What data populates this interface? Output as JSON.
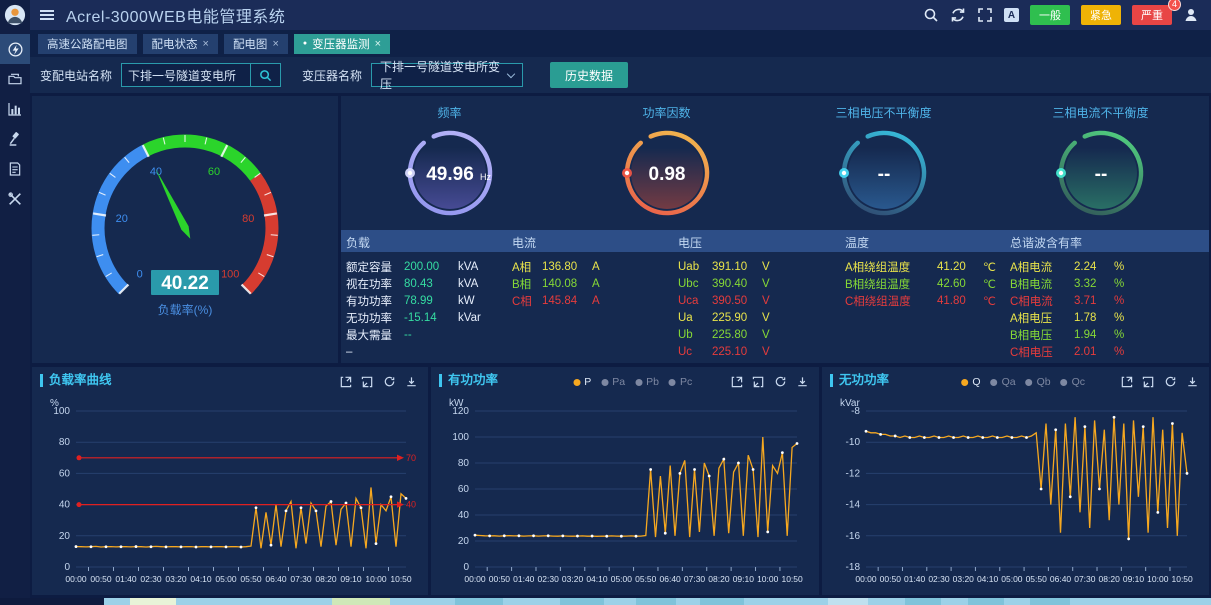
{
  "app": {
    "title": "Acrel-3000WEB电能管理系统"
  },
  "topbar": {
    "badges": [
      {
        "label": "一般",
        "color": "#2fbf4f",
        "count": null
      },
      {
        "label": "紧急",
        "color": "#efb306",
        "count": null
      },
      {
        "label": "严重",
        "color": "#e84545",
        "count": "4"
      }
    ]
  },
  "tabs": [
    {
      "label": "高速公路配电图",
      "closable": false,
      "active": false
    },
    {
      "label": "配电状态",
      "closable": true,
      "active": false
    },
    {
      "label": "配电图",
      "closable": true,
      "active": false
    },
    {
      "label": "变压器监测",
      "closable": true,
      "active": true
    }
  ],
  "filters": {
    "station_label": "变配电站名称",
    "station_value": "下排一号隧道变电所",
    "transformer_label": "变压器名称",
    "transformer_value": "下排一号隧道变电所变压",
    "history_button": "历史数据"
  },
  "load_gauge": {
    "value": "40.22",
    "caption": "负载率(%)",
    "min": 0,
    "max": 100,
    "tick_labels": [
      0,
      20,
      40,
      60,
      80,
      100
    ],
    "zones": [
      {
        "from": 0,
        "to": 40,
        "color": "#3e8ef0"
      },
      {
        "from": 40,
        "to": 70,
        "color": "#2bd42b"
      },
      {
        "from": 70,
        "to": 100,
        "color": "#d63c30"
      }
    ],
    "needle_value": 40.22,
    "needle_color": "#2bd42b",
    "value_box_color": "#2a9aab"
  },
  "ring_gauges": [
    {
      "title": "频率",
      "value": "49.96",
      "unit": "Hz",
      "ring_from": "#8f93ef",
      "ring_to": "#b9b6f8",
      "fill": "#6f66cc",
      "dot": "#d8daff"
    },
    {
      "title": "功率因数",
      "value": "0.98",
      "unit": "",
      "ring_from": "#e8584a",
      "ring_to": "#f2bf4e",
      "fill": "#c04a3a",
      "dot": "#f05545"
    },
    {
      "title": "三相电压不平衡度",
      "value": "--",
      "unit": "",
      "ring_from": "#2f3f66",
      "ring_to": "#38c9e8",
      "fill": "#3a7fc0",
      "dot": "#45d6f2"
    },
    {
      "title": "三相电流不平衡度",
      "value": "--",
      "unit": "",
      "ring_from": "#2f4f56",
      "ring_to": "#54da83",
      "fill": "#3aa877",
      "dot": "#45e8d0"
    }
  ],
  "datatable": {
    "value_colors": {
      "teal": "#35dca2",
      "yellow": "#e9e44b",
      "green": "#86d936",
      "red": "#e63c3c",
      "white": "#e6eefc"
    },
    "columns": [
      {
        "title": "负载",
        "rows": [
          {
            "label": "额定容量",
            "value": "200.00",
            "unit": "kVA",
            "color": "teal"
          },
          {
            "label": "视在功率",
            "value": "80.43",
            "unit": "kVA",
            "color": "teal"
          },
          {
            "label": "有功功率",
            "value": "78.99",
            "unit": "kW",
            "color": "teal"
          },
          {
            "label": "无功功率",
            "value": "-15.14",
            "unit": "kVar",
            "color": "teal"
          },
          {
            "label": "最大需量",
            "value": "--",
            "unit": "",
            "color": "teal"
          },
          {
            "label": "–",
            "value": "",
            "unit": "",
            "color": "white"
          }
        ]
      },
      {
        "title": "电流",
        "rows": [
          {
            "label": "A相",
            "value": "136.80",
            "unit": "A",
            "color": "yellow"
          },
          {
            "label": "B相",
            "value": "140.08",
            "unit": "A",
            "color": "green"
          },
          {
            "label": "C相",
            "value": "145.84",
            "unit": "A",
            "color": "red"
          }
        ]
      },
      {
        "title": "电压",
        "rows": [
          {
            "label": "Uab",
            "value": "391.10",
            "unit": "V",
            "color": "yellow"
          },
          {
            "label": "Ubc",
            "value": "390.40",
            "unit": "V",
            "color": "green"
          },
          {
            "label": "Uca",
            "value": "390.50",
            "unit": "V",
            "color": "red"
          },
          {
            "label": "Ua",
            "value": "225.90",
            "unit": "V",
            "color": "yellow"
          },
          {
            "label": "Ub",
            "value": "225.80",
            "unit": "V",
            "color": "green"
          },
          {
            "label": "Uc",
            "value": "225.10",
            "unit": "V",
            "color": "red"
          }
        ]
      },
      {
        "title": "温度",
        "rows": [
          {
            "label": "A相绕组温度",
            "value": "41.20",
            "unit": "℃",
            "color": "yellow"
          },
          {
            "label": "B相绕组温度",
            "value": "42.60",
            "unit": "℃",
            "color": "green"
          },
          {
            "label": "C相绕组温度",
            "value": "41.80",
            "unit": "℃",
            "color": "red"
          }
        ]
      },
      {
        "title": "总谐波含有率",
        "rows": [
          {
            "label": "A相电流",
            "value": "2.24",
            "unit": "%",
            "color": "yellow"
          },
          {
            "label": "B相电流",
            "value": "3.32",
            "unit": "%",
            "color": "green"
          },
          {
            "label": "C相电流",
            "value": "3.71",
            "unit": "%",
            "color": "red"
          },
          {
            "label": "A相电压",
            "value": "1.78",
            "unit": "%",
            "color": "yellow"
          },
          {
            "label": "B相电压",
            "value": "1.94",
            "unit": "%",
            "color": "green"
          },
          {
            "label": "C相电压",
            "value": "2.01",
            "unit": "%",
            "color": "red"
          }
        ]
      }
    ]
  },
  "chart_data": [
    {
      "type": "line",
      "title": "负载率曲线",
      "unit": "%",
      "ylim": [
        0,
        100
      ],
      "yticks": [
        100,
        80,
        60,
        40,
        20,
        0
      ],
      "x_interval_min": 10,
      "x_tick_labels": [
        "00:00",
        "00:50",
        "01:40",
        "02:30",
        "03:20",
        "04:10",
        "05:00",
        "05:50",
        "06:40",
        "07:30",
        "08:20",
        "09:10",
        "10:00",
        "10:50"
      ],
      "legend": null,
      "marklines": [
        {
          "value": 70,
          "label": "70",
          "color": "#e02020"
        },
        {
          "value": 40,
          "label": "40",
          "color": "#e02020"
        }
      ],
      "series": [
        {
          "name": "负载率",
          "color": "#f6a820",
          "values": [
            13.1,
            13,
            12.9,
            13,
            13.2,
            12.8,
            13,
            13.1,
            12.9,
            13,
            13,
            12.9,
            13.1,
            13,
            12.8,
            13,
            13.2,
            13,
            12.9,
            13.1,
            13,
            12.9,
            13,
            13.1,
            12.8,
            13,
            13,
            12.9,
            13.1,
            13,
            12.9,
            13,
            13.1,
            12.8,
            13,
            13.4,
            38,
            12,
            35,
            14,
            40,
            13,
            36,
            42,
            12,
            38,
            15,
            41,
            36,
            13,
            39,
            42,
            14,
            37,
            41,
            13,
            44,
            38,
            12,
            51,
            15,
            40,
            36,
            45,
            13,
            47,
            44
          ]
        }
      ]
    },
    {
      "type": "line",
      "title": "有功功率",
      "unit": "kW",
      "ylim": [
        0,
        120
      ],
      "yticks": [
        120,
        100,
        80,
        60,
        40,
        20,
        0
      ],
      "x_interval_min": 10,
      "x_tick_labels": [
        "00:00",
        "00:50",
        "01:40",
        "02:30",
        "03:20",
        "04:10",
        "05:00",
        "05:50",
        "06:40",
        "07:30",
        "08:20",
        "09:10",
        "10:00",
        "10:50"
      ],
      "legend": [
        {
          "name": "P",
          "color": "#f6a820",
          "active": true
        },
        {
          "name": "Pa",
          "color": "#7e88a2",
          "active": false
        },
        {
          "name": "Pb",
          "color": "#7e88a2",
          "active": false
        },
        {
          "name": "Pc",
          "color": "#7e88a2",
          "active": false
        }
      ],
      "marklines": [],
      "series": [
        {
          "name": "P",
          "color": "#f6a820",
          "values": [
            24.5,
            24.2,
            24,
            23.9,
            24,
            23.8,
            24,
            24.1,
            23.9,
            24,
            23.8,
            23.9,
            24,
            23.8,
            23.9,
            24,
            23.8,
            23.7,
            23.9,
            23.8,
            23.7,
            23.8,
            23.9,
            23.7,
            23.8,
            23.6,
            23.8,
            23.7,
            23.9,
            23.8,
            23.7,
            23.8,
            23.9,
            23.7,
            23.8,
            24.2,
            75,
            23,
            70,
            26,
            78,
            24,
            72,
            82,
            23,
            75,
            27,
            80,
            70,
            24,
            76,
            83,
            26,
            73,
            80,
            24,
            86,
            75,
            23,
            100,
            27,
            78,
            72,
            88,
            24,
            92,
            95
          ]
        }
      ]
    },
    {
      "type": "line",
      "title": "无功功率",
      "unit": "kVar",
      "ylim": [
        -18,
        -8
      ],
      "yticks": [
        -8,
        -10,
        -12,
        -14,
        -16,
        -18
      ],
      "x_interval_min": 10,
      "x_tick_labels": [
        "00:00",
        "00:50",
        "01:40",
        "02:30",
        "03:20",
        "04:10",
        "05:00",
        "05:50",
        "06:40",
        "07:30",
        "08:20",
        "09:10",
        "10:00",
        "10:50"
      ],
      "legend": [
        {
          "name": "Q",
          "color": "#f6a820",
          "active": true
        },
        {
          "name": "Qa",
          "color": "#7e88a2",
          "active": false
        },
        {
          "name": "Qb",
          "color": "#7e88a2",
          "active": false
        },
        {
          "name": "Qc",
          "color": "#7e88a2",
          "active": false
        }
      ],
      "marklines": [],
      "series": [
        {
          "name": "Q",
          "color": "#f6a820",
          "values": [
            -9.3,
            -9.4,
            -9.4,
            -9.5,
            -9.5,
            -9.6,
            -9.6,
            -9.7,
            -9.6,
            -9.7,
            -9.7,
            -9.6,
            -9.7,
            -9.7,
            -9.6,
            -9.7,
            -9.7,
            -9.6,
            -9.7,
            -9.7,
            -9.6,
            -9.7,
            -9.7,
            -9.6,
            -9.7,
            -9.7,
            -9.6,
            -9.7,
            -9.7,
            -9.6,
            -9.7,
            -9.7,
            -9.6,
            -9.7,
            -9.6,
            -9.4,
            -13,
            -8.8,
            -14,
            -9.2,
            -15.8,
            -8.8,
            -13.5,
            -8.4,
            -14.5,
            -9,
            -15.5,
            -8.6,
            -13,
            -9.2,
            -15,
            -8.4,
            -14,
            -8.8,
            -16.2,
            -8.6,
            -13.5,
            -9,
            -15.8,
            -8.4,
            -14.5,
            -9.2,
            -15.5,
            -8.8,
            -16,
            -9.4,
            -12
          ]
        }
      ]
    }
  ]
}
